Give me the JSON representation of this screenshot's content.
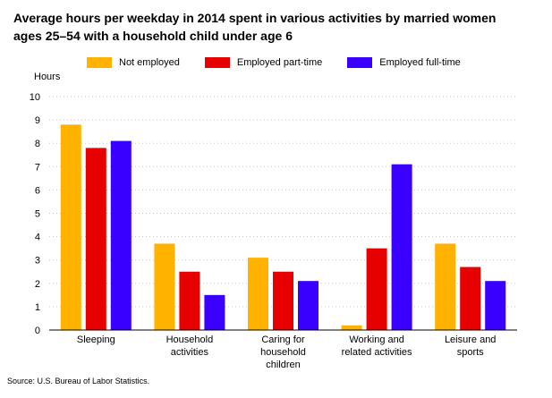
{
  "chart_data": {
    "type": "bar",
    "title": "Average hours per weekday in 2014 spent in various activities by married women ages 25–54 with a household child under age 6",
    "ylabel": "Hours",
    "xlabel": "",
    "ylim": [
      0,
      10
    ],
    "yticks": [
      0,
      1,
      2,
      3,
      4,
      5,
      6,
      7,
      8,
      9,
      10
    ],
    "grid": true,
    "legend_position": "top",
    "categories": [
      [
        "Sleeping"
      ],
      [
        "Household",
        "activities"
      ],
      [
        "Caring for",
        "household",
        "children"
      ],
      [
        "Working and",
        "related activities"
      ],
      [
        "Leisure and",
        "sports"
      ]
    ],
    "series": [
      {
        "name": "Not employed",
        "color": "#ffb300",
        "values": [
          8.8,
          3.7,
          3.1,
          0.2,
          3.7
        ]
      },
      {
        "name": "Employed part-time",
        "color": "#e60000",
        "values": [
          7.8,
          2.5,
          2.5,
          3.5,
          2.7
        ]
      },
      {
        "name": "Employed full-time",
        "color": "#3a00ff",
        "values": [
          8.1,
          1.5,
          2.1,
          7.1,
          2.1
        ]
      }
    ]
  },
  "source": "Source: U.S. Bureau of Labor Statistics."
}
